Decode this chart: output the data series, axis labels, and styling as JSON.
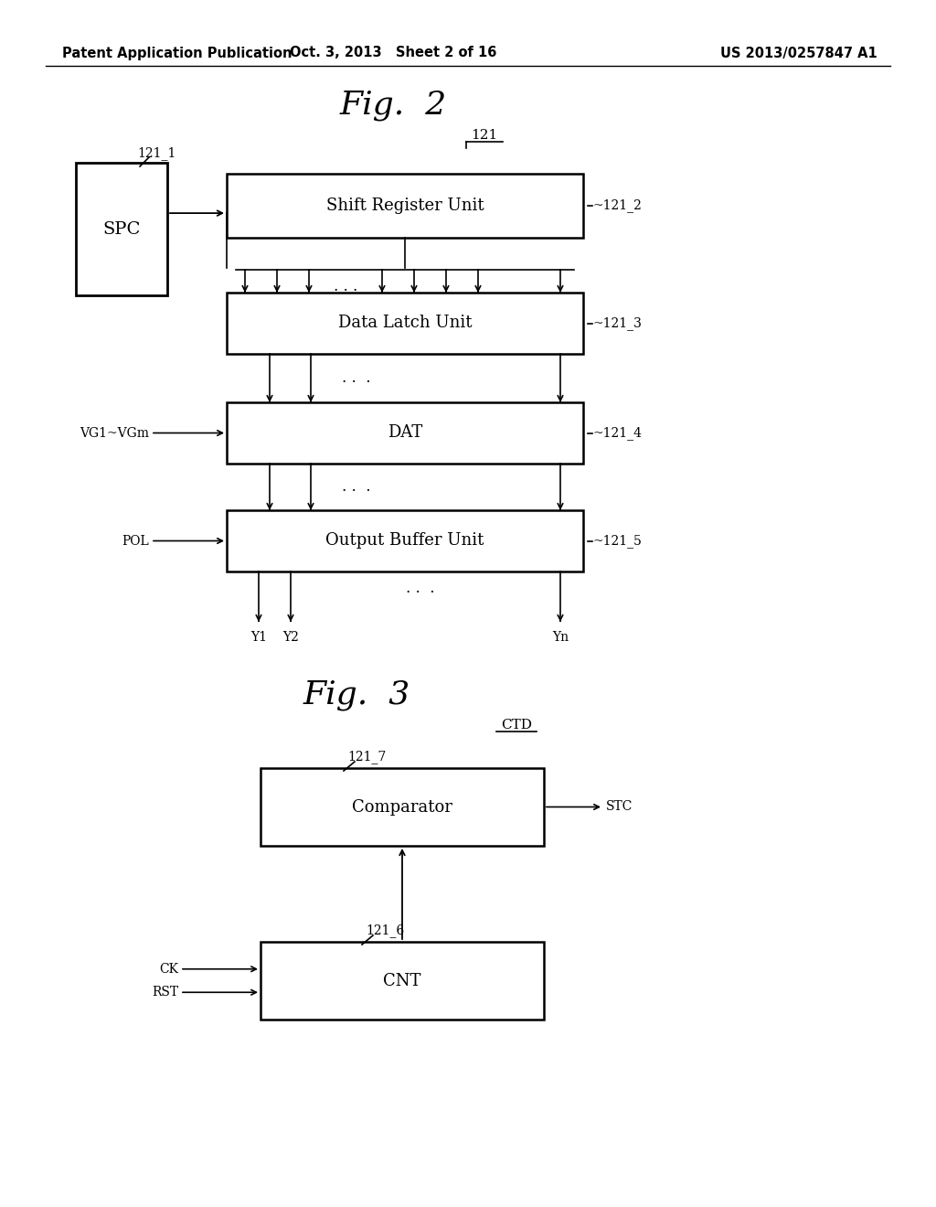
{
  "bg_color": "#ffffff",
  "header_left": "Patent Application Publication",
  "header_mid": "Oct. 3, 2013   Sheet 2 of 16",
  "header_right": "US 2013/0257847 A1",
  "fig2_title": "Fig.  2",
  "fig3_title": "Fig.  3",
  "line_color": "#000000",
  "text_color": "#000000"
}
